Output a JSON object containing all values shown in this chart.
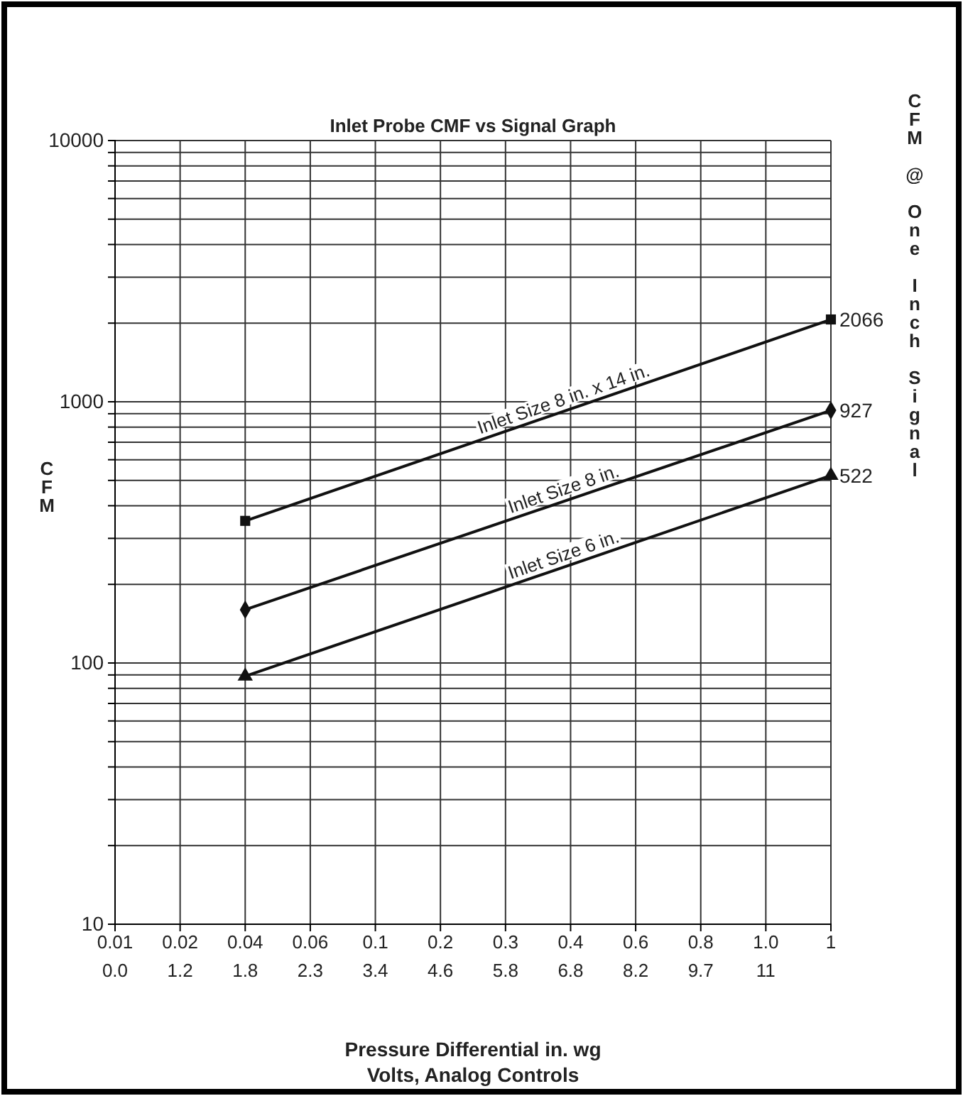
{
  "chart_data": {
    "type": "line",
    "title": "Inlet Probe CMF vs Signal Graph",
    "xlabel": "Pressure Differential in. wg",
    "ylabel": "CFM",
    "y2label": "CFM @ One Inch Signal",
    "categories": [
      "0.01",
      "0.02",
      "0.04",
      "0.06",
      "0.1",
      "0.2",
      "0.3",
      "0.4",
      "0.6",
      "0.8",
      "1.0",
      "1"
    ],
    "annotations": [
      "0.0",
      "1.2",
      "1.8",
      "2.3",
      "3.4",
      "4.6",
      "5.8",
      "6.8",
      "8.2",
      "9.7",
      "11",
      "Volts, Analog Controls"
    ],
    "log": "y",
    "ylim": [
      10,
      10000
    ],
    "yticks": [
      10,
      {
        "value": 20,
        "label": null
      },
      {
        "value": 30,
        "label": null
      },
      {
        "value": 40,
        "label": null
      },
      {
        "value": 50,
        "label": null
      },
      {
        "value": 60,
        "label": null
      },
      {
        "value": 70,
        "label": null
      },
      {
        "value": 80,
        "label": null
      },
      {
        "value": 90,
        "label": null
      },
      100,
      {
        "value": 200,
        "label": null
      },
      {
        "value": 300,
        "label": null
      },
      {
        "value": 400,
        "label": null
      },
      {
        "value": 500,
        "label": null
      },
      {
        "value": 600,
        "label": null
      },
      {
        "value": 700,
        "label": null
      },
      {
        "value": 800,
        "label": null
      },
      {
        "value": 900,
        "label": null
      },
      1000,
      {
        "value": 2000,
        "label": null
      },
      {
        "value": 3000,
        "label": null
      },
      {
        "value": 4000,
        "label": null
      },
      {
        "value": 5000,
        "label": null
      },
      {
        "value": 6000,
        "label": null
      },
      {
        "value": 7000,
        "label": null
      },
      {
        "value": 8000,
        "label": null
      },
      {
        "value": 9000,
        "label": null
      },
      10000
    ],
    "grid": true,
    "line_style": "solid",
    "series": [
      {
        "name": "Inlet Size 8 in. x 14 in.",
        "color": "#111111",
        "marker": "square",
        "x": [
          "0.04",
          "1"
        ],
        "values": [
          350,
          2066
        ],
        "value_labels": [
          null,
          "2066"
        ]
      },
      {
        "name": "Inlet Size 8 in.",
        "color": "#111111",
        "marker": "diamond",
        "x": [
          "0.04",
          "1"
        ],
        "values": [
          160,
          927
        ],
        "value_labels": [
          null,
          "927"
        ]
      },
      {
        "name": "Inlet Size 6 in.",
        "color": "#111111",
        "marker": "triangle",
        "x": [
          "0.04",
          "1"
        ],
        "values": [
          89,
          522
        ],
        "value_labels": [
          null,
          "522"
        ]
      }
    ]
  }
}
